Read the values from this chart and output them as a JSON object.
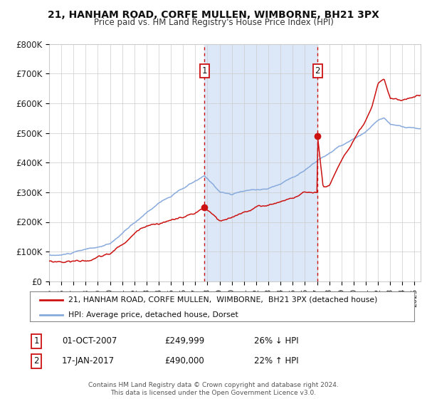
{
  "title": "21, HANHAM ROAD, CORFE MULLEN, WIMBORNE, BH21 3PX",
  "subtitle": "Price paid vs. HM Land Registry's House Price Index (HPI)",
  "legend_line1": "21, HANHAM ROAD, CORFE MULLEN,  WIMBORNE,  BH21 3PX (detached house)",
  "legend_line2": "HPI: Average price, detached house, Dorset",
  "annotation1_date": "01-OCT-2007",
  "annotation1_price": "£249,999",
  "annotation1_pct": "26% ↓ HPI",
  "annotation2_date": "17-JAN-2017",
  "annotation2_price": "£490,000",
  "annotation2_pct": "22% ↑ HPI",
  "footer": "Contains HM Land Registry data © Crown copyright and database right 2024.\nThis data is licensed under the Open Government Licence v3.0.",
  "bg_color": "#ffffff",
  "plot_bg_color": "#ffffff",
  "hpi_color": "#88aadd",
  "price_color": "#cc1111",
  "shade_color": "#dce8f8",
  "vline_color": "#cc1111",
  "grid_color": "#cccccc",
  "point1_x": 2007.75,
  "point1_y": 249999,
  "point2_x": 2017.04,
  "point2_y": 490000,
  "xmin": 1995.0,
  "xmax": 2025.5,
  "ymin": 0,
  "ymax": 800000,
  "yticks": [
    0,
    100000,
    200000,
    300000,
    400000,
    500000,
    600000,
    700000,
    800000
  ],
  "ytick_labels": [
    "£0",
    "£100K",
    "£200K",
    "£300K",
    "£400K",
    "£500K",
    "£600K",
    "£700K",
    "£800K"
  ],
  "xtick_years": [
    1995,
    1996,
    1997,
    1998,
    1999,
    2000,
    2001,
    2002,
    2003,
    2004,
    2005,
    2006,
    2007,
    2008,
    2009,
    2010,
    2011,
    2012,
    2013,
    2014,
    2015,
    2016,
    2017,
    2018,
    2019,
    2020,
    2021,
    2022,
    2023,
    2024,
    2025
  ]
}
